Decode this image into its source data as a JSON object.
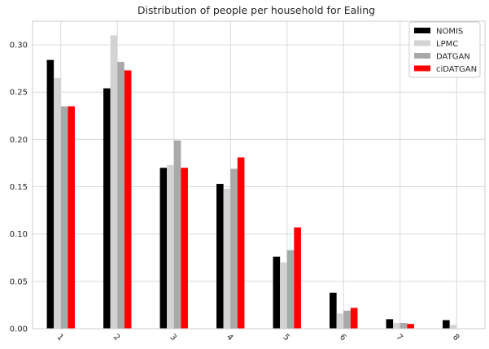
{
  "chart_data": {
    "type": "bar",
    "title": "Distribution of people per household for Ealing",
    "xlabel": "",
    "ylabel": "",
    "categories": [
      "1",
      "2",
      "3",
      "4",
      "5",
      "6",
      "7",
      "8"
    ],
    "ylim": [
      0,
      0.325
    ],
    "yticks": [
      "0.00",
      "0.05",
      "0.10",
      "0.15",
      "0.20",
      "0.25",
      "0.30"
    ],
    "yticks_values": [
      0,
      0.05,
      0.1,
      0.15,
      0.2,
      0.25,
      0.3
    ],
    "grid": true,
    "legend_position": "top-right",
    "series": [
      {
        "name": "NOMIS",
        "color": "#000000",
        "values": [
          0.284,
          0.254,
          0.17,
          0.153,
          0.076,
          0.038,
          0.01,
          0.009
        ]
      },
      {
        "name": "LPMC",
        "color": "#d3d3d3",
        "values": [
          0.265,
          0.31,
          0.173,
          0.148,
          0.07,
          0.016,
          0.006,
          0.004
        ]
      },
      {
        "name": "DATGAN",
        "color": "#a9a9a9",
        "values": [
          0.235,
          0.282,
          0.199,
          0.169,
          0.083,
          0.019,
          0.006,
          0.0
        ]
      },
      {
        "name": "ciDATGAN",
        "color": "#ff0000",
        "values": [
          0.235,
          0.273,
          0.17,
          0.181,
          0.107,
          0.022,
          0.005,
          0.0
        ]
      }
    ]
  }
}
